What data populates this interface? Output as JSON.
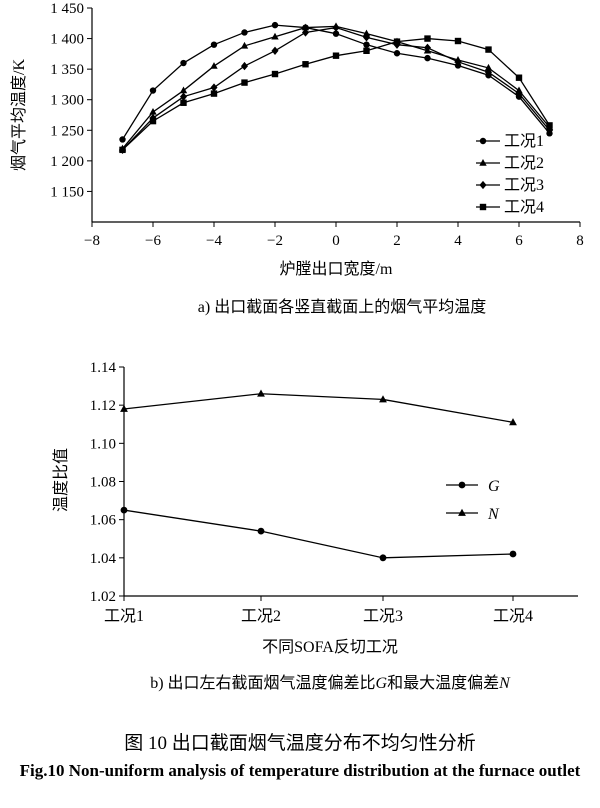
{
  "figure": {
    "title_zh": "图 10  出口截面烟气温度分布不均匀性分析",
    "title_en": "Fig.10 Non-uniform analysis of temperature distribution at the furnace outlet"
  },
  "chart_data": [
    {
      "id": "a",
      "type": "line",
      "caption": "a) 出口截面各竖直截面上的烟气平均温度",
      "xlabel": "炉膛出口宽度/m",
      "ylabel": "烟气平均温度/K",
      "xlim": [
        -8,
        8
      ],
      "ylim": [
        1100,
        1450
      ],
      "xticks": [
        -8,
        -6,
        -4,
        -2,
        0,
        2,
        4,
        6,
        8
      ],
      "xtick_labels": [
        "−8",
        "−6",
        "−4",
        "−2",
        "0",
        "2",
        "4",
        "6",
        "8"
      ],
      "yticks": [
        1150,
        1200,
        1250,
        1300,
        1350,
        1400,
        1450
      ],
      "ytick_labels": [
        "1 150",
        "1 200",
        "1 250",
        "1 300",
        "1 350",
        "1 400",
        "1 450"
      ],
      "grid": false,
      "legend_position": "right",
      "series": [
        {
          "name": "工况1",
          "marker": "circle",
          "x": [
            -7,
            -6,
            -5,
            -4,
            -3,
            -2,
            -1,
            0,
            1,
            2,
            3,
            4,
            5,
            6,
            7
          ],
          "y": [
            1235,
            1315,
            1360,
            1390,
            1410,
            1422,
            1418,
            1408,
            1390,
            1376,
            1368,
            1356,
            1340,
            1305,
            1245
          ]
        },
        {
          "name": "工况2",
          "marker": "triangle",
          "x": [
            -7,
            -6,
            -5,
            -4,
            -3,
            -2,
            -1,
            0,
            1,
            2,
            3,
            4,
            5,
            6,
            7
          ],
          "y": [
            1220,
            1280,
            1315,
            1355,
            1388,
            1403,
            1418,
            1420,
            1408,
            1395,
            1380,
            1365,
            1352,
            1315,
            1255
          ]
        },
        {
          "name": "工况3",
          "marker": "diamond",
          "x": [
            -7,
            -6,
            -5,
            -4,
            -3,
            -2,
            -1,
            0,
            1,
            2,
            3,
            4,
            5,
            6,
            7
          ],
          "y": [
            1218,
            1270,
            1305,
            1320,
            1355,
            1380,
            1410,
            1418,
            1402,
            1390,
            1385,
            1362,
            1345,
            1310,
            1250
          ]
        },
        {
          "name": "工况4",
          "marker": "square",
          "x": [
            -7,
            -6,
            -5,
            -4,
            -3,
            -2,
            -1,
            0,
            1,
            2,
            3,
            4,
            5,
            6,
            7
          ],
          "y": [
            1218,
            1265,
            1295,
            1310,
            1328,
            1342,
            1358,
            1372,
            1380,
            1395,
            1400,
            1396,
            1382,
            1336,
            1258
          ]
        }
      ]
    },
    {
      "id": "b",
      "type": "line",
      "caption_prefix": "b) 出口左右截面烟气温度偏差比",
      "caption_g": "G",
      "caption_mid": "和最大温度偏差",
      "caption_n": "N",
      "xlabel": "不同SOFA反切工况",
      "ylabel": "温度比值",
      "categories": [
        "工况1",
        "工况2",
        "工况3",
        "工况4"
      ],
      "ylim": [
        1.02,
        1.14
      ],
      "yticks": [
        1.02,
        1.04,
        1.06,
        1.08,
        1.1,
        1.12,
        1.14
      ],
      "ytick_labels": [
        "1.02",
        "1.04",
        "1.06",
        "1.08",
        "1.10",
        "1.12",
        "1.14"
      ],
      "grid": false,
      "legend_position": "right",
      "series": [
        {
          "name": "G",
          "marker": "circle",
          "values": [
            1.065,
            1.054,
            1.04,
            1.042
          ]
        },
        {
          "name": "N",
          "marker": "triangle",
          "values": [
            1.118,
            1.126,
            1.123,
            1.111
          ]
        }
      ]
    }
  ]
}
